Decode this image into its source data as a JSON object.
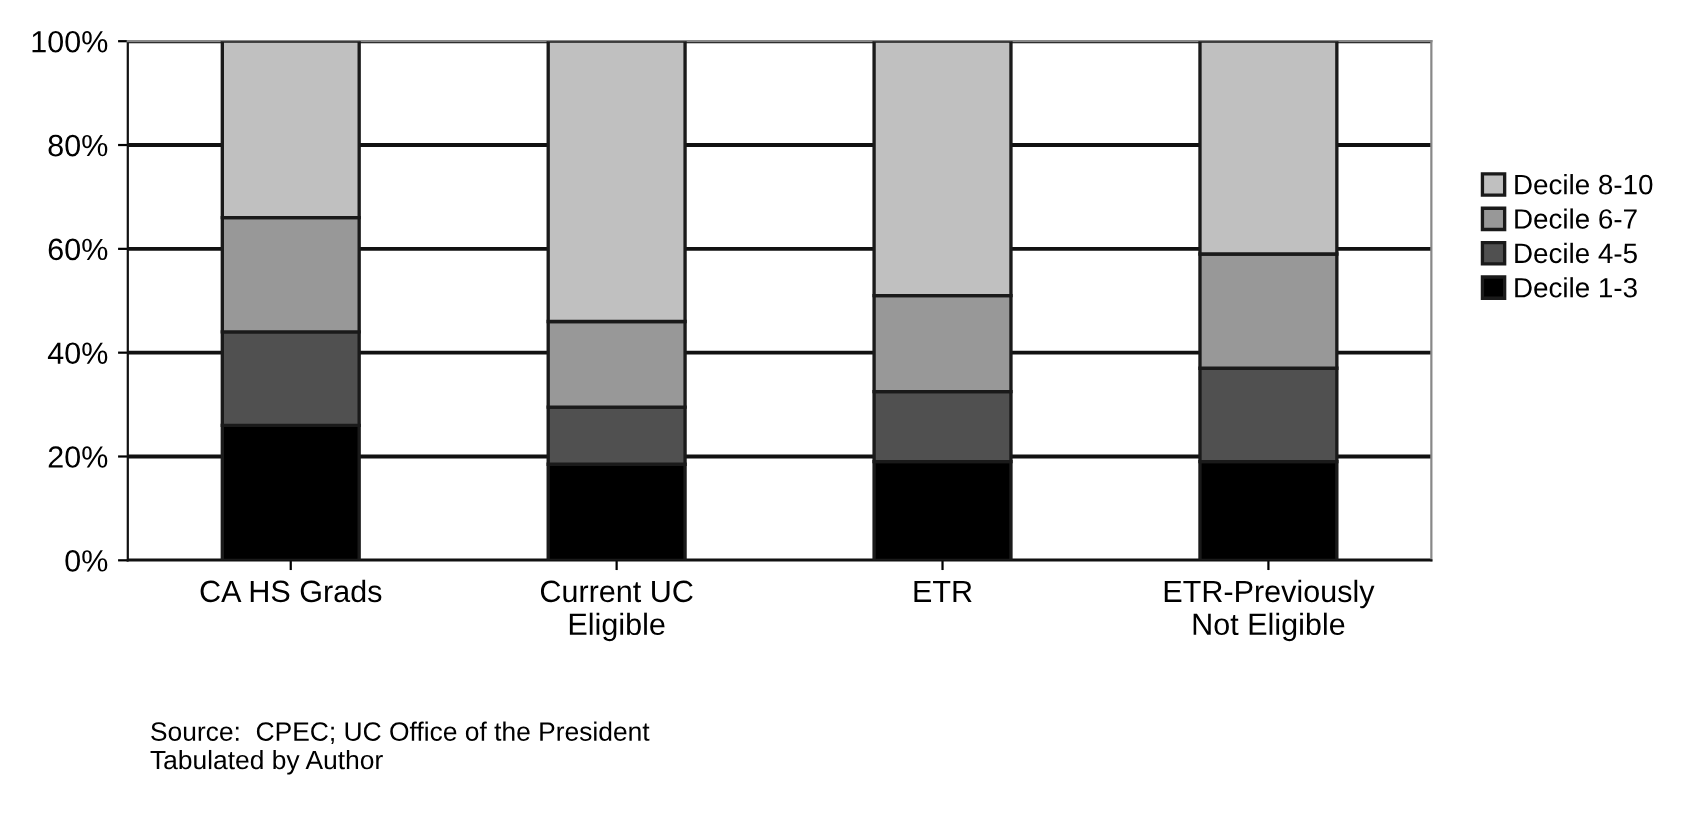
{
  "chart_data": {
    "type": "bar",
    "stacked": true,
    "categories": [
      "CA HS Grads",
      "Current UC\nEligible",
      "ETR",
      "ETR-Previously\nNot Eligible"
    ],
    "series": [
      {
        "name": "Decile 1-3",
        "color": "#000000",
        "values": [
          26,
          18.5,
          19,
          19
        ]
      },
      {
        "name": "Decile 4-5",
        "color": "#505050",
        "values": [
          18,
          11,
          13.5,
          18
        ]
      },
      {
        "name": "Decile 6-7",
        "color": "#989898",
        "values": [
          22,
          16.5,
          18.5,
          22
        ]
      },
      {
        "name": "Decile 8-10",
        "color": "#c0c0c0",
        "values": [
          34,
          54,
          49,
          41
        ]
      }
    ],
    "ylim": [
      0,
      100
    ],
    "yticks": [
      {
        "value": 0,
        "label": "0%"
      },
      {
        "value": 20,
        "label": "20%"
      },
      {
        "value": 40,
        "label": "40%"
      },
      {
        "value": 60,
        "label": "60%"
      },
      {
        "value": 80,
        "label": "80%"
      },
      {
        "value": 100,
        "label": "100%"
      }
    ],
    "grid": "y",
    "legend": "right",
    "annotations": [
      "Source:  CPEC; UC Office of the President\nTabulated by Author"
    ]
  }
}
